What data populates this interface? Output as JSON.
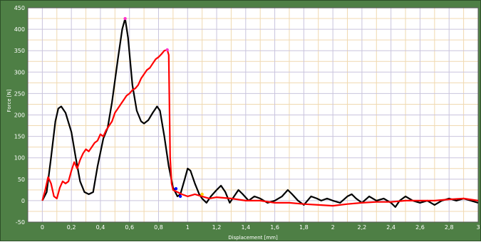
{
  "chart_data": {
    "type": "line",
    "title": "",
    "xlabel": "Displacement [mm]",
    "ylabel": "Force [N]",
    "xlim": [
      -0.1,
      3.0
    ],
    "ylim": [
      -50,
      450
    ],
    "x_ticks": [
      0,
      0.2,
      0.4,
      0.6,
      0.8,
      1,
      1.2,
      1.4,
      1.6,
      1.8,
      2,
      2.2,
      2.4,
      2.6,
      2.8,
      3
    ],
    "x_tick_labels": [
      "0",
      "0,2",
      "0,4",
      "0,6",
      "0,8",
      "1",
      "1,2",
      "1,4",
      "1,6",
      "1,8",
      "2",
      "2,2",
      "2,4",
      "2,6",
      "2,8",
      "3"
    ],
    "y_ticks": [
      -50,
      0,
      50,
      100,
      150,
      200,
      250,
      300,
      350,
      400,
      450
    ],
    "y_tick_labels": [
      "-50",
      "0",
      "50",
      "100",
      "150",
      "200",
      "250",
      "300",
      "350",
      "400",
      "450"
    ],
    "grid": true,
    "legend": "none",
    "background_color": "#4e7f45",
    "plot_background": "#ffffff",
    "grid_color_major": "#c9c4dd",
    "grid_color_minor": "#f0d9b0",
    "series": [
      {
        "color": "#000000",
        "points": [
          [
            0,
            0
          ],
          [
            0.03,
            20
          ],
          [
            0.06,
            100
          ],
          [
            0.09,
            185
          ],
          [
            0.11,
            215
          ],
          [
            0.13,
            220
          ],
          [
            0.16,
            205
          ],
          [
            0.2,
            160
          ],
          [
            0.23,
            100
          ],
          [
            0.26,
            45
          ],
          [
            0.29,
            20
          ],
          [
            0.32,
            15
          ],
          [
            0.35,
            20
          ],
          [
            0.38,
            80
          ],
          [
            0.42,
            145
          ],
          [
            0.45,
            170
          ],
          [
            0.48,
            230
          ],
          [
            0.52,
            330
          ],
          [
            0.55,
            400
          ],
          [
            0.57,
            425
          ],
          [
            0.59,
            380
          ],
          [
            0.62,
            270
          ],
          [
            0.65,
            210
          ],
          [
            0.68,
            185
          ],
          [
            0.7,
            180
          ],
          [
            0.73,
            188
          ],
          [
            0.76,
            205
          ],
          [
            0.79,
            220
          ],
          [
            0.81,
            210
          ],
          [
            0.84,
            150
          ],
          [
            0.87,
            80
          ],
          [
            0.9,
            30
          ],
          [
            0.93,
            10
          ],
          [
            0.95,
            15
          ],
          [
            0.98,
            50
          ],
          [
            1.0,
            75
          ],
          [
            1.02,
            70
          ],
          [
            1.05,
            40
          ],
          [
            1.08,
            15
          ],
          [
            1.1,
            5
          ],
          [
            1.13,
            -5
          ],
          [
            1.16,
            10
          ],
          [
            1.2,
            25
          ],
          [
            1.23,
            35
          ],
          [
            1.26,
            20
          ],
          [
            1.29,
            -5
          ],
          [
            1.32,
            10
          ],
          [
            1.35,
            25
          ],
          [
            1.38,
            15
          ],
          [
            1.42,
            0
          ],
          [
            1.46,
            10
          ],
          [
            1.5,
            5
          ],
          [
            1.55,
            -5
          ],
          [
            1.6,
            0
          ],
          [
            1.65,
            10
          ],
          [
            1.69,
            25
          ],
          [
            1.72,
            15
          ],
          [
            1.76,
            0
          ],
          [
            1.8,
            -10
          ],
          [
            1.85,
            10
          ],
          [
            1.89,
            5
          ],
          [
            1.92,
            0
          ],
          [
            1.96,
            5
          ],
          [
            2.0,
            0
          ],
          [
            2.05,
            -5
          ],
          [
            2.1,
            10
          ],
          [
            2.13,
            15
          ],
          [
            2.16,
            5
          ],
          [
            2.2,
            -5
          ],
          [
            2.25,
            10
          ],
          [
            2.3,
            0
          ],
          [
            2.35,
            5
          ],
          [
            2.4,
            -5
          ],
          [
            2.43,
            -15
          ],
          [
            2.46,
            0
          ],
          [
            2.5,
            10
          ],
          [
            2.55,
            0
          ],
          [
            2.6,
            -5
          ],
          [
            2.65,
            0
          ],
          [
            2.7,
            -10
          ],
          [
            2.75,
            0
          ],
          [
            2.8,
            5
          ],
          [
            2.85,
            0
          ],
          [
            2.9,
            5
          ],
          [
            2.95,
            0
          ],
          [
            3.0,
            -5
          ]
        ]
      },
      {
        "color": "#ff0000",
        "points": [
          [
            0,
            0
          ],
          [
            0.02,
            25
          ],
          [
            0.04,
            55
          ],
          [
            0.06,
            40
          ],
          [
            0.08,
            10
          ],
          [
            0.1,
            5
          ],
          [
            0.12,
            30
          ],
          [
            0.14,
            45
          ],
          [
            0.16,
            40
          ],
          [
            0.18,
            45
          ],
          [
            0.2,
            70
          ],
          [
            0.22,
            90
          ],
          [
            0.24,
            75
          ],
          [
            0.26,
            95
          ],
          [
            0.28,
            110
          ],
          [
            0.3,
            120
          ],
          [
            0.32,
            115
          ],
          [
            0.34,
            125
          ],
          [
            0.36,
            135
          ],
          [
            0.38,
            140
          ],
          [
            0.4,
            155
          ],
          [
            0.42,
            150
          ],
          [
            0.44,
            165
          ],
          [
            0.46,
            175
          ],
          [
            0.48,
            185
          ],
          [
            0.5,
            205
          ],
          [
            0.52,
            215
          ],
          [
            0.54,
            225
          ],
          [
            0.56,
            235
          ],
          [
            0.58,
            245
          ],
          [
            0.6,
            250
          ],
          [
            0.62,
            258
          ],
          [
            0.64,
            262
          ],
          [
            0.66,
            270
          ],
          [
            0.68,
            285
          ],
          [
            0.7,
            295
          ],
          [
            0.72,
            305
          ],
          [
            0.74,
            310
          ],
          [
            0.76,
            320
          ],
          [
            0.78,
            330
          ],
          [
            0.8,
            335
          ],
          [
            0.82,
            342
          ],
          [
            0.84,
            350
          ],
          [
            0.86,
            352
          ],
          [
            0.87,
            340
          ],
          [
            0.88,
            100
          ],
          [
            0.89,
            40
          ],
          [
            0.9,
            25
          ],
          [
            0.93,
            20
          ],
          [
            0.96,
            15
          ],
          [
            1.0,
            10
          ],
          [
            1.05,
            15
          ],
          [
            1.1,
            10
          ],
          [
            1.15,
            5
          ],
          [
            1.2,
            8
          ],
          [
            1.3,
            5
          ],
          [
            1.4,
            0
          ],
          [
            1.5,
            0
          ],
          [
            1.6,
            -5
          ],
          [
            1.7,
            -5
          ],
          [
            1.8,
            -8
          ],
          [
            1.9,
            -10
          ],
          [
            2.0,
            -12
          ],
          [
            2.1,
            -8
          ],
          [
            2.2,
            -5
          ],
          [
            2.3,
            -3
          ],
          [
            2.4,
            -3
          ],
          [
            2.5,
            0
          ],
          [
            2.6,
            0
          ],
          [
            2.7,
            0
          ],
          [
            2.8,
            3
          ],
          [
            2.9,
            5
          ],
          [
            3.0,
            0
          ]
        ]
      }
    ],
    "markers": [
      {
        "x": 0.57,
        "y": 425,
        "color": "#ff33cc"
      },
      {
        "x": 0.86,
        "y": 352,
        "color": "#ff33cc"
      },
      {
        "x": 0.92,
        "y": 28,
        "color": "#0000ff"
      },
      {
        "x": 0.95,
        "y": 10,
        "color": "#0000ff"
      },
      {
        "x": 1.1,
        "y": 15,
        "color": "#ffcc00"
      }
    ]
  }
}
